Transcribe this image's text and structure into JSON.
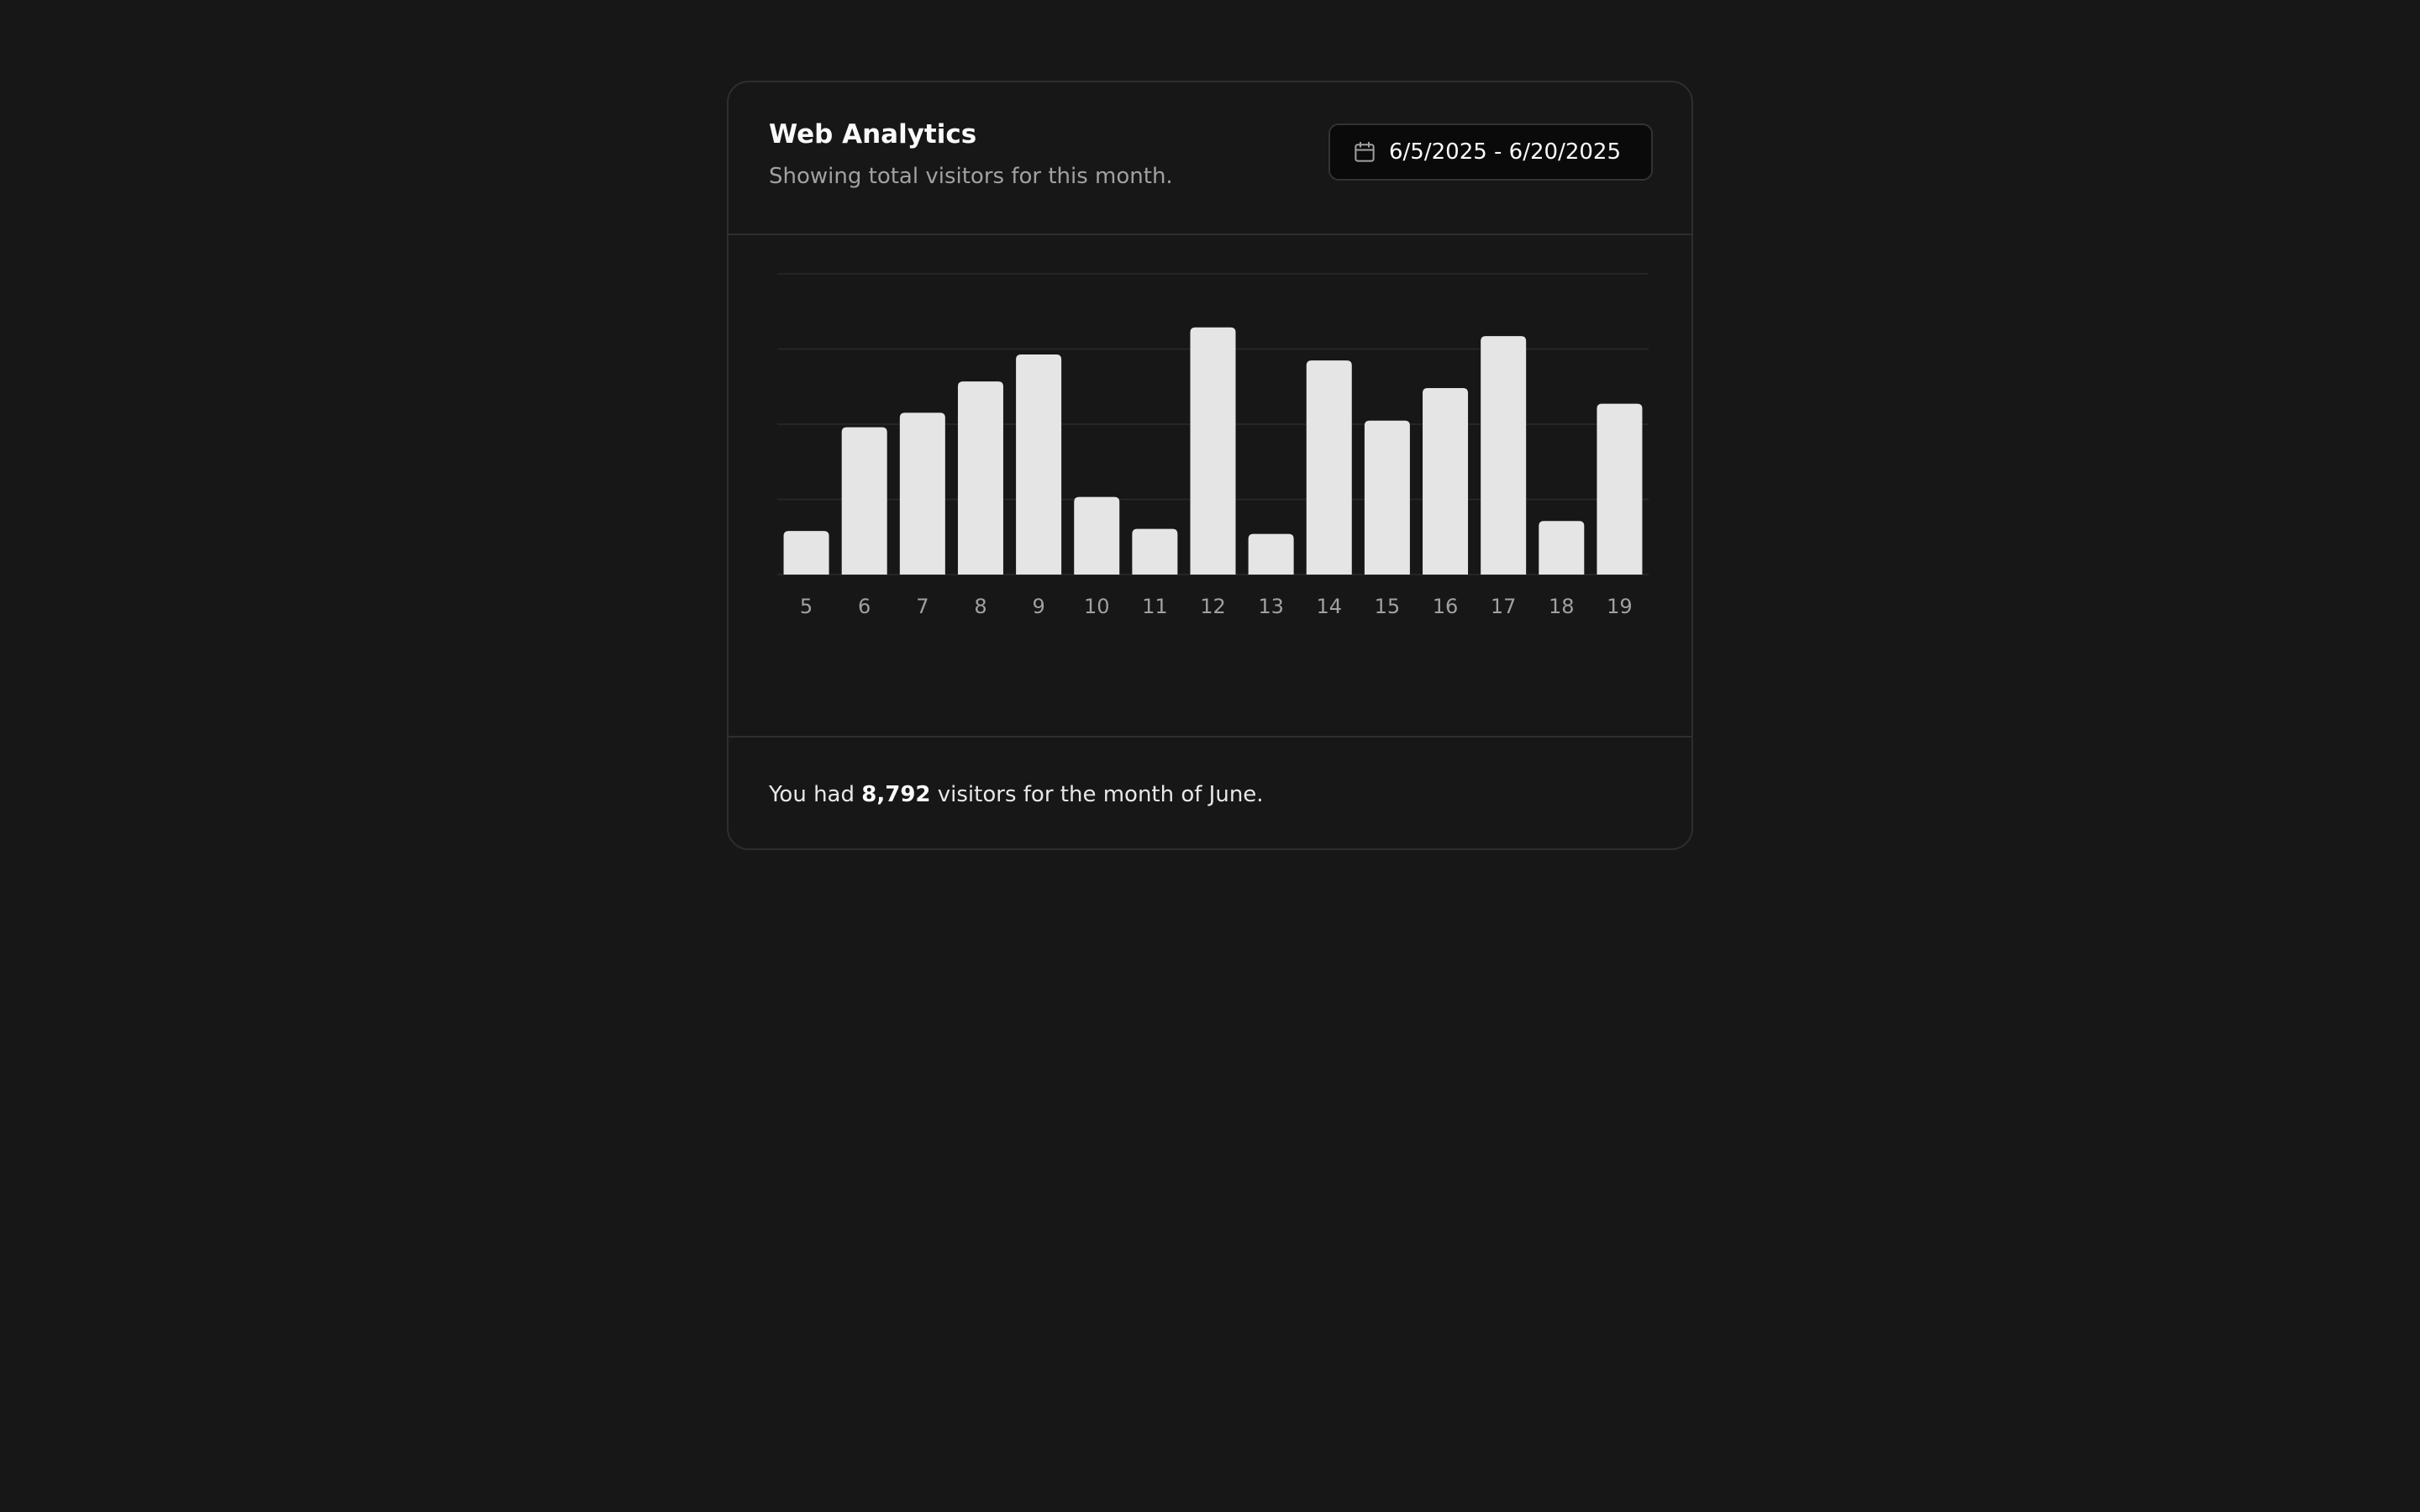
{
  "card": {
    "title": "Web Analytics",
    "subtitle": "Showing total visitors for this month.",
    "date_range": "6/5/2025 - 6/20/2025",
    "date_icon": "calendar-icon"
  },
  "footer": {
    "prefix": "You had ",
    "count": "8,792",
    "suffix": " visitors for the month of June."
  },
  "colors": {
    "background": "#171717",
    "bar": "#e5e5e5",
    "grid": "#2a2a2a",
    "tick_label": "#a1a1a1"
  },
  "chart_data": {
    "type": "bar",
    "categories": [
      "5",
      "6",
      "7",
      "8",
      "9",
      "10",
      "11",
      "12",
      "13",
      "14",
      "15",
      "16",
      "17",
      "18",
      "19"
    ],
    "values": [
      145,
      490,
      538,
      642,
      732,
      258,
      152,
      822,
      135,
      712,
      512,
      620,
      793,
      178,
      568
    ],
    "ylim": [
      0,
      1000
    ],
    "grid": true,
    "xlabel": "",
    "ylabel": ""
  }
}
